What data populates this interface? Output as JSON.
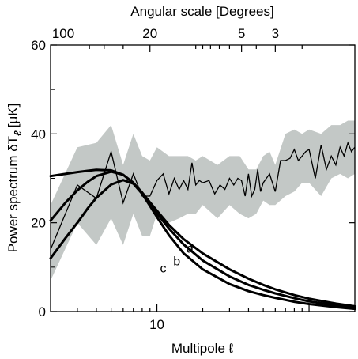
{
  "chart_data": {
    "type": "line",
    "xlabel": "Multipole ℓ",
    "x2label": "Angular scale [Degrees]",
    "ylabel": "Power spectrum δT",
    "ylabel_sub": "ℓ",
    "ylabel_unit": "[μK]",
    "x_scale": "log",
    "xlim": [
      2,
      200
    ],
    "ylim": [
      0,
      60
    ],
    "y_ticks": [
      0,
      20,
      40,
      60
    ],
    "x_tick_labels": [
      {
        "value": 10,
        "label": "10"
      }
    ],
    "x2_tick_labels": [
      {
        "value": 100,
        "label": "100"
      },
      {
        "value": 20,
        "label": "20"
      },
      {
        "value": 5,
        "label": "5"
      },
      {
        "value": 3,
        "label": "3"
      }
    ],
    "grid": false,
    "measured": {
      "color": "#000000",
      "x": [
        2,
        3,
        4,
        5,
        6,
        7,
        8,
        9,
        10,
        11,
        12,
        13,
        14,
        15,
        16,
        17,
        18,
        19,
        20,
        22,
        24,
        26,
        28,
        30,
        32,
        34,
        36,
        38,
        40,
        42,
        44,
        46,
        48,
        50,
        55,
        60,
        65,
        70,
        75,
        80,
        85,
        90,
        95,
        100,
        110,
        120,
        130,
        140,
        150,
        160,
        170,
        180,
        190,
        200
      ],
      "y": [
        14,
        28.5,
        25.5,
        36,
        24.5,
        31,
        26,
        26,
        29.5,
        31,
        26.5,
        30,
        27.5,
        29.5,
        27.5,
        33.5,
        28.5,
        29.5,
        29,
        29.5,
        26.5,
        28.5,
        27.5,
        30,
        28.5,
        30,
        29.5,
        26,
        31,
        26,
        27.5,
        32,
        27,
        29,
        31,
        27,
        34,
        34,
        34.5,
        36.5,
        34,
        35,
        36,
        36.5,
        30,
        37.5,
        32,
        35,
        33,
        37,
        35,
        38,
        36,
        37
      ]
    },
    "band": {
      "color": "#c3c8c6",
      "x": [
        2,
        3,
        4,
        5,
        6,
        7,
        8,
        9,
        10,
        12,
        14,
        16,
        18,
        20,
        25,
        30,
        35,
        40,
        45,
        50,
        55,
        60,
        70,
        80,
        90,
        100,
        120,
        140,
        160,
        180,
        200
      ],
      "upper": [
        24,
        37,
        38,
        42,
        33,
        40,
        35,
        34,
        37,
        35,
        35,
        35,
        34,
        35,
        33,
        35,
        35,
        32,
        32,
        35,
        36,
        33,
        40,
        41,
        40,
        41,
        40,
        42,
        42,
        43,
        43
      ],
      "lower": [
        7,
        20,
        15,
        21,
        15,
        22,
        17,
        17,
        22,
        20,
        21,
        22,
        22,
        24,
        21,
        24,
        22,
        21,
        22,
        25,
        24,
        24,
        26,
        27,
        29,
        29,
        26,
        30,
        31,
        30,
        31
      ]
    },
    "series": [
      {
        "name": "a",
        "x": [
          2,
          2.5,
          3,
          3.5,
          4,
          5,
          6,
          7,
          8,
          9,
          10,
          12,
          15,
          20,
          30,
          40,
          50,
          60,
          80,
          100,
          150,
          200
        ],
        "y": [
          30.5,
          31,
          31.4,
          31.7,
          31.9,
          31.8,
          30.8,
          29,
          26.8,
          24.6,
          22.7,
          19.5,
          16.3,
          13.1,
          9.5,
          7.4,
          6.0,
          5.0,
          3.7,
          2.9,
          1.8,
          1.2
        ]
      },
      {
        "name": "b",
        "x": [
          2,
          2.5,
          3,
          3.5,
          4,
          5,
          6,
          7,
          8,
          9,
          10,
          12,
          15,
          20,
          30,
          40,
          50,
          60,
          80,
          100,
          150,
          200
        ],
        "y": [
          20.5,
          24.5,
          27.3,
          29.2,
          30.5,
          31.5,
          30.8,
          29,
          26.6,
          24.2,
          22.1,
          18.7,
          15.1,
          11.5,
          7.9,
          6.0,
          4.9,
          4.1,
          3.0,
          2.3,
          1.4,
          0.9
        ]
      },
      {
        "name": "c",
        "x": [
          2,
          2.5,
          3,
          3.5,
          4,
          5,
          6,
          7,
          8,
          9,
          10,
          12,
          15,
          20,
          30,
          40,
          50,
          60,
          80,
          100,
          150,
          200
        ],
        "y": [
          12,
          16.5,
          20,
          23.2,
          25.6,
          28.6,
          29.6,
          28.8,
          26.5,
          23.8,
          21.3,
          17.2,
          13.1,
          9.5,
          6.2,
          4.6,
          3.7,
          3.1,
          2.2,
          1.7,
          1.0,
          0.6
        ]
      }
    ],
    "curve_labels": [
      {
        "name": "a",
        "x": 16.5,
        "y": 13.3
      },
      {
        "name": "b",
        "x": 13.5,
        "y": 10.4
      },
      {
        "name": "c",
        "x": 11.0,
        "y": 8.8
      }
    ]
  }
}
